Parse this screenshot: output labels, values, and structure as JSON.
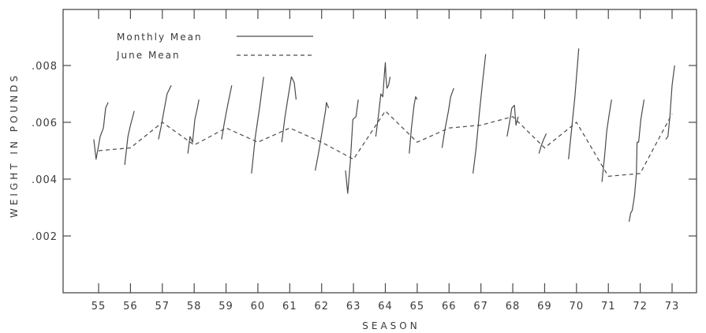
{
  "chart_data": {
    "type": "line",
    "xlabel": "SEASON",
    "ylabel": "WEIGHT IN POUNDS",
    "categories": [
      "55",
      "56",
      "57",
      "58",
      "59",
      "60",
      "61",
      "62",
      "63",
      "64",
      "65",
      "66",
      "67",
      "68",
      "69",
      "70",
      "71",
      "72",
      "73"
    ],
    "y_ticks": [
      ".002",
      ".004",
      ".006",
      ".008"
    ],
    "y_tick_values": [
      0.002,
      0.004,
      0.006,
      0.008
    ],
    "ylim": [
      0.0003,
      0.0103
    ],
    "grid": false,
    "legend_position": "top-left",
    "series": [
      {
        "name": "Monthly Mean",
        "style": "solid",
        "segments": [
          [
            [
              54.85,
              0.0054
            ],
            [
              54.92,
              0.0047
            ],
            [
              55.05,
              0.0055
            ],
            [
              55.15,
              0.0058
            ],
            [
              55.22,
              0.0065
            ],
            [
              55.3,
              0.0067
            ]
          ],
          [
            [
              55.82,
              0.0045
            ],
            [
              55.92,
              0.0055
            ],
            [
              56.0,
              0.0059
            ],
            [
              56.12,
              0.0064
            ]
          ],
          [
            [
              56.88,
              0.0054
            ],
            [
              56.97,
              0.0059
            ],
            [
              57.05,
              0.0064
            ],
            [
              57.15,
              0.007
            ],
            [
              57.28,
              0.0073
            ]
          ],
          [
            [
              57.8,
              0.0049
            ],
            [
              57.87,
              0.0055
            ],
            [
              57.95,
              0.0053
            ],
            [
              58.02,
              0.0061
            ],
            [
              58.1,
              0.0065
            ],
            [
              58.15,
              0.0068
            ]
          ],
          [
            [
              58.86,
              0.0054
            ],
            [
              58.95,
              0.006
            ],
            [
              59.05,
              0.0066
            ],
            [
              59.18,
              0.0073
            ]
          ],
          [
            [
              59.8,
              0.0042
            ],
            [
              59.92,
              0.0055
            ],
            [
              60.05,
              0.0065
            ],
            [
              60.18,
              0.0076
            ]
          ],
          [
            [
              60.75,
              0.0053
            ],
            [
              60.85,
              0.0062
            ],
            [
              60.95,
              0.0069
            ],
            [
              61.05,
              0.0076
            ],
            [
              61.14,
              0.0074
            ],
            [
              61.2,
              0.0068
            ]
          ],
          [
            [
              61.8,
              0.0043
            ],
            [
              61.9,
              0.0049
            ],
            [
              62.02,
              0.0057
            ],
            [
              62.12,
              0.0064
            ],
            [
              62.15,
              0.0067
            ],
            [
              62.22,
              0.0065
            ]
          ],
          [
            [
              62.75,
              0.0043
            ],
            [
              62.82,
              0.0035
            ],
            [
              62.9,
              0.0046
            ],
            [
              62.98,
              0.0061
            ],
            [
              63.08,
              0.0062
            ],
            [
              63.15,
              0.0068
            ]
          ],
          [
            [
              63.7,
              0.0055
            ],
            [
              63.78,
              0.0062
            ],
            [
              63.86,
              0.007
            ],
            [
              63.92,
              0.0069
            ],
            [
              63.97,
              0.0077
            ],
            [
              64.0,
              0.0081
            ],
            [
              64.02,
              0.0076
            ],
            [
              64.05,
              0.0072
            ],
            [
              64.1,
              0.0073
            ],
            [
              64.15,
              0.0076
            ]
          ],
          [
            [
              64.75,
              0.0049
            ],
            [
              64.82,
              0.0058
            ],
            [
              64.9,
              0.0066
            ],
            [
              64.95,
              0.0069
            ],
            [
              65.0,
              0.0068
            ]
          ],
          [
            [
              65.78,
              0.0051
            ],
            [
              65.88,
              0.0058
            ],
            [
              65.98,
              0.0064
            ],
            [
              66.05,
              0.0069
            ],
            [
              66.15,
              0.0072
            ]
          ],
          [
            [
              66.75,
              0.0042
            ],
            [
              66.85,
              0.0051
            ],
            [
              66.95,
              0.0063
            ],
            [
              67.05,
              0.0074
            ],
            [
              67.15,
              0.0084
            ]
          ],
          [
            [
              67.82,
              0.0055
            ],
            [
              67.9,
              0.006
            ],
            [
              67.97,
              0.0065
            ],
            [
              68.05,
              0.0066
            ],
            [
              68.1,
              0.0059
            ],
            [
              68.17,
              0.0062
            ]
          ],
          [
            [
              68.82,
              0.0049
            ],
            [
              68.9,
              0.0052
            ],
            [
              68.97,
              0.0054
            ],
            [
              69.05,
              0.0056
            ]
          ],
          [
            [
              69.75,
              0.0047
            ],
            [
              69.85,
              0.0058
            ],
            [
              69.95,
              0.0069
            ],
            [
              70.07,
              0.0086
            ]
          ],
          [
            [
              70.8,
              0.0039
            ],
            [
              70.88,
              0.0048
            ],
            [
              70.95,
              0.0057
            ],
            [
              71.03,
              0.0063
            ],
            [
              71.1,
              0.0068
            ]
          ],
          [
            [
              71.65,
              0.0025
            ],
            [
              71.7,
              0.0028
            ],
            [
              71.75,
              0.0029
            ],
            [
              71.82,
              0.0034
            ],
            [
              71.88,
              0.0042
            ],
            [
              71.9,
              0.0053
            ],
            [
              71.95,
              0.0053
            ],
            [
              72.02,
              0.0061
            ],
            [
              72.12,
              0.0068
            ]
          ],
          [
            [
              72.8,
              0.0054
            ],
            [
              72.87,
              0.0055
            ],
            [
              72.93,
              0.0062
            ],
            [
              73.0,
              0.0073
            ],
            [
              73.08,
              0.008
            ]
          ]
        ]
      },
      {
        "name": "June Mean",
        "style": "dashed",
        "points": [
          [
            55,
            0.005
          ],
          [
            56,
            0.0051
          ],
          [
            57,
            0.006
          ],
          [
            58,
            0.0052
          ],
          [
            59,
            0.0058
          ],
          [
            60,
            0.0053
          ],
          [
            61,
            0.0058
          ],
          [
            62,
            0.0053
          ],
          [
            63,
            0.0047
          ],
          [
            64,
            0.0064
          ],
          [
            65,
            0.0053
          ],
          [
            66,
            0.0058
          ],
          [
            67,
            0.0059
          ],
          [
            68,
            0.0062
          ],
          [
            69,
            0.0051
          ],
          [
            70,
            0.006
          ],
          [
            71,
            0.0041
          ],
          [
            72,
            0.0042
          ],
          [
            73,
            0.0063
          ]
        ]
      }
    ]
  }
}
